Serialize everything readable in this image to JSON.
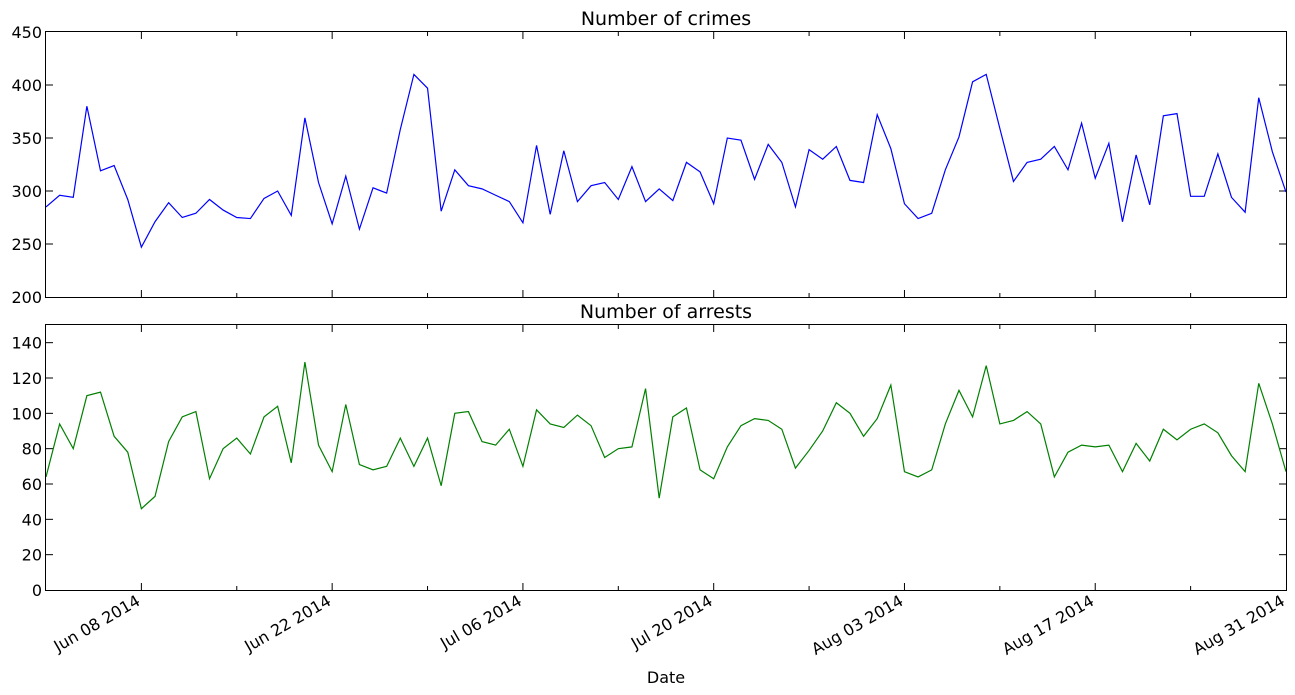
{
  "chart_data": [
    {
      "type": "line",
      "title": "Number of crimes",
      "xlabel": "",
      "ylabel": "",
      "x_start": "2014-06-01",
      "x_end": "2014-08-31",
      "ylim": [
        200,
        450
      ],
      "yticks": [
        200,
        250,
        300,
        350,
        400,
        450
      ],
      "grid": false,
      "color": "#0000ff",
      "series": [
        {
          "values": [
            285,
            296,
            294,
            380,
            319,
            324,
            292,
            247,
            271,
            289,
            275,
            279,
            292,
            282,
            275,
            274,
            293,
            300,
            277,
            369,
            308,
            269,
            314,
            264,
            303,
            298,
            358,
            410,
            397,
            281,
            320,
            305,
            302,
            296,
            290,
            270,
            343,
            278,
            338,
            290,
            305,
            308,
            292,
            323,
            290,
            302,
            291,
            327,
            318,
            288,
            350,
            348,
            311,
            344,
            327,
            285,
            339,
            330,
            342,
            310,
            308,
            372,
            340,
            288,
            274,
            279,
            320,
            351,
            403,
            410,
            359,
            309,
            327,
            330,
            342,
            320,
            364,
            312,
            345,
            271,
            334,
            287,
            371,
            373,
            295,
            295,
            335,
            294,
            280,
            388,
            337,
            299
          ]
        }
      ]
    },
    {
      "type": "line",
      "title": "Number of arrests",
      "xlabel": "Date",
      "ylabel": "",
      "x_start": "2014-06-01",
      "x_end": "2014-08-31",
      "ylim": [
        0,
        150
      ],
      "yticks": [
        0,
        20,
        40,
        60,
        80,
        100,
        120,
        140
      ],
      "grid": false,
      "color": "#008000",
      "xtick_labels": [
        "Jun 08 2014",
        "Jun 22 2014",
        "Jul 06 2014",
        "Jul 20 2014",
        "Aug 03 2014",
        "Aug 17 2014",
        "Aug 31 2014"
      ],
      "xtick_dates": [
        "2014-06-08",
        "2014-06-22",
        "2014-07-06",
        "2014-07-20",
        "2014-08-03",
        "2014-08-17",
        "2014-08-31"
      ],
      "minor_xtick_dates": [
        "2014-06-15",
        "2014-06-29",
        "2014-07-13",
        "2014-07-27",
        "2014-08-10",
        "2014-08-24"
      ],
      "series": [
        {
          "values": [
            64,
            94,
            80,
            110,
            112,
            87,
            78,
            46,
            53,
            84,
            98,
            101,
            63,
            80,
            86,
            77,
            98,
            104,
            72,
            129,
            82,
            67,
            105,
            71,
            68,
            70,
            86,
            70,
            86,
            59,
            100,
            101,
            84,
            82,
            91,
            70,
            102,
            94,
            92,
            99,
            93,
            75,
            80,
            81,
            114,
            52,
            98,
            103,
            68,
            63,
            81,
            93,
            97,
            96,
            91,
            69,
            79,
            90,
            106,
            100,
            87,
            97,
            116,
            67,
            64,
            68,
            94,
            113,
            98,
            127,
            94,
            96,
            101,
            94,
            64,
            78,
            82,
            81,
            82,
            67,
            83,
            73,
            91,
            85,
            91,
            94,
            89,
            76,
            67,
            117,
            94,
            67
          ]
        }
      ]
    }
  ]
}
